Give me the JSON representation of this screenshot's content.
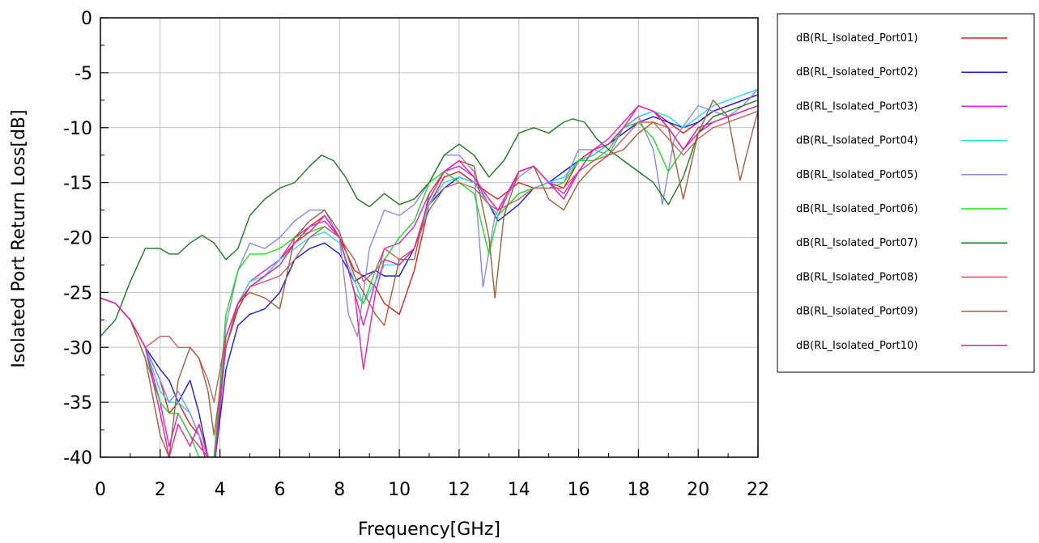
{
  "chart_data": {
    "type": "line",
    "xlabel": "Frequency[GHz]",
    "ylabel": "Isolated Port Return Loss[dB]",
    "xlim": [
      0,
      22
    ],
    "ylim": [
      -40,
      0
    ],
    "xticks": [
      0,
      2,
      4,
      6,
      8,
      10,
      12,
      14,
      16,
      18,
      20,
      22
    ],
    "yticks": [
      0,
      -5,
      -10,
      -15,
      -20,
      -25,
      -30,
      -35,
      -40
    ],
    "grid": true,
    "legend_position": "right",
    "series": [
      {
        "name": "dB(RL_Isolated_Port01)",
        "color": "#e02020",
        "x": [
          0,
          0.5,
          1,
          1.5,
          2,
          2.3,
          2.6,
          3,
          3.3,
          3.6,
          3.8,
          4.2,
          4.6,
          5,
          5.5,
          6,
          6.5,
          7,
          7.5,
          8,
          8.5,
          8.8,
          9.2,
          9.5,
          10,
          10.5,
          11,
          11.5,
          12,
          12.5,
          13,
          13.3,
          14,
          14.5,
          15,
          15.5,
          16,
          16.5,
          17,
          17.5,
          18,
          18.5,
          19,
          19.5,
          20,
          20.5,
          21,
          21.5,
          22
        ],
        "y": [
          -25.5,
          -26,
          -27.5,
          -30,
          -33,
          -36,
          -35,
          -37,
          -38,
          -41,
          -41,
          -30,
          -26.5,
          -24.5,
          -23.5,
          -22,
          -20.5,
          -19,
          -18,
          -20,
          -23,
          -23.5,
          -24.5,
          -26,
          -27,
          -23,
          -17,
          -14.5,
          -14,
          -15,
          -16,
          -16.5,
          -15,
          -15.5,
          -15,
          -15.5,
          -13,
          -12,
          -11.5,
          -10,
          -9,
          -8.5,
          -9.5,
          -10.5,
          -9.5,
          -8.5,
          -8,
          -7.5,
          -7
        ]
      },
      {
        "name": "dB(RL_Isolated_Port02)",
        "color": "#1a1ae0",
        "x": [
          0,
          0.5,
          1,
          1.5,
          2,
          2.3,
          2.6,
          3,
          3.3,
          3.6,
          3.8,
          4.2,
          4.6,
          5,
          5.5,
          6,
          6.5,
          7,
          7.5,
          8,
          8.5,
          8.8,
          9.2,
          9.5,
          10,
          10.5,
          11,
          11.5,
          12,
          12.5,
          13,
          13.3,
          14,
          14.5,
          15,
          15.5,
          16,
          16.5,
          17,
          17.5,
          18,
          18.5,
          19,
          19.5,
          20,
          20.5,
          21,
          21.5,
          22
        ],
        "y": [
          -25.5,
          -26,
          -27.5,
          -30,
          -32,
          -33,
          -35,
          -33,
          -36,
          -40,
          -41,
          -32,
          -28,
          -27,
          -26.5,
          -25,
          -22,
          -21,
          -20.5,
          -21.5,
          -24,
          -23.5,
          -23,
          -23.5,
          -23.5,
          -21,
          -17,
          -15.5,
          -14.5,
          -15,
          -17,
          -18.5,
          -17,
          -15.5,
          -15,
          -14,
          -13,
          -12.5,
          -11.5,
          -10.5,
          -9.5,
          -9,
          -9.5,
          -10,
          -9.5,
          -8.5,
          -8,
          -7.5,
          -7
        ]
      },
      {
        "name": "dB(RL_Isolated_Port03)",
        "color": "#e020e0",
        "x": [
          0,
          0.5,
          1,
          1.5,
          2,
          2.3,
          2.6,
          3,
          3.3,
          3.6,
          3.8,
          4.2,
          4.6,
          5,
          5.5,
          6,
          6.5,
          7,
          7.5,
          8,
          8.5,
          8.8,
          9.2,
          9.5,
          10,
          10.5,
          11,
          11.5,
          12,
          12.5,
          13,
          13.3,
          14,
          14.5,
          15,
          15.5,
          16,
          16.5,
          17,
          17.5,
          18,
          18.5,
          19,
          19.5,
          20,
          20.5,
          21,
          21.5,
          22
        ],
        "y": [
          -25.5,
          -26,
          -27.5,
          -30,
          -35,
          -39,
          -36,
          -38,
          -39,
          -40,
          -41,
          -30,
          -26,
          -24,
          -23,
          -22,
          -20,
          -19,
          -18.5,
          -20,
          -25,
          -28,
          -24,
          -21,
          -20.5,
          -19,
          -16,
          -14,
          -13.5,
          -14.5,
          -17,
          -18,
          -14,
          -13.5,
          -15,
          -16,
          -14,
          -12,
          -11,
          -9.5,
          -8,
          -8.5,
          -10,
          -12,
          -10.5,
          -9.5,
          -9,
          -8.5,
          -8
        ]
      },
      {
        "name": "dB(RL_Isolated_Port04)",
        "color": "#22dde8",
        "x": [
          0,
          0.5,
          1,
          1.5,
          2,
          2.3,
          2.6,
          3,
          3.3,
          3.6,
          3.8,
          4.2,
          4.6,
          5,
          5.5,
          6,
          6.5,
          7,
          7.5,
          8,
          8.5,
          8.8,
          9.2,
          9.5,
          10,
          10.5,
          11,
          11.5,
          12,
          12.5,
          13,
          13.3,
          14,
          14.5,
          15,
          15.5,
          16,
          16.5,
          17,
          17.5,
          18,
          18.5,
          19,
          19.5,
          20,
          20.5,
          21,
          21.5,
          22
        ],
        "y": [
          -25.5,
          -26,
          -27.5,
          -30,
          -34,
          -35,
          -35,
          -36,
          -38,
          -40,
          -40,
          -30,
          -26,
          -24,
          -23.5,
          -22,
          -21,
          -20,
          -19.5,
          -20.5,
          -24,
          -26,
          -24,
          -22.5,
          -22.5,
          -21,
          -17,
          -15,
          -14.5,
          -15,
          -17,
          -18,
          -16,
          -15.5,
          -15,
          -14.5,
          -13,
          -12.5,
          -11.5,
          -10,
          -9,
          -8.5,
          -9,
          -10,
          -9,
          -8,
          -7.5,
          -7,
          -6.5
        ]
      },
      {
        "name": "dB(RL_Isolated_Port05)",
        "color": "#8a8ae8",
        "x": [
          0,
          0.5,
          1,
          1.5,
          2,
          2.3,
          2.6,
          3,
          3.3,
          3.6,
          3.8,
          4.2,
          4.6,
          5,
          5.5,
          6,
          6.5,
          7,
          7.5,
          8,
          8.3,
          8.6,
          9,
          9.5,
          10,
          10.5,
          11,
          11.5,
          12,
          12.5,
          12.8,
          13.2,
          14,
          14.5,
          15,
          15.5,
          16,
          16.5,
          17,
          17.5,
          18,
          18.5,
          18.8,
          19.2,
          20,
          20.5,
          21,
          21.5,
          22
        ],
        "y": [
          -25.5,
          -26,
          -27.5,
          -30,
          -33,
          -35,
          -34,
          -36,
          -38,
          -40,
          -40,
          -28,
          -23,
          -20.5,
          -21,
          -20,
          -18.5,
          -17.5,
          -17.5,
          -20,
          -27,
          -29,
          -21,
          -17.5,
          -18,
          -17,
          -15,
          -12.5,
          -12.5,
          -14,
          -24.5,
          -18,
          -14.5,
          -13.5,
          -15,
          -15,
          -12,
          -12,
          -12.5,
          -10,
          -9,
          -12,
          -17,
          -11,
          -8,
          -8.5,
          -9,
          -8,
          -6.5
        ]
      },
      {
        "name": "dB(RL_Isolated_Port06)",
        "color": "#22dd22",
        "x": [
          0,
          0.5,
          1,
          1.5,
          2,
          2.3,
          2.6,
          3,
          3.3,
          3.6,
          3.8,
          4.2,
          4.6,
          5,
          5.5,
          6,
          6.5,
          7,
          7.5,
          8,
          8.5,
          8.8,
          9.2,
          9.5,
          10,
          10.5,
          11,
          11.5,
          12,
          12.5,
          13,
          13.3,
          14,
          14.5,
          15,
          15.5,
          16,
          16.5,
          17,
          17.5,
          18,
          18.5,
          19,
          19.5,
          20,
          20.5,
          21,
          21.5,
          22
        ],
        "y": [
          -25.5,
          -26,
          -27.5,
          -31,
          -35,
          -36,
          -36,
          -38,
          -40,
          -40,
          -40,
          -27,
          -23,
          -21.5,
          -21.5,
          -21,
          -20,
          -19.5,
          -19,
          -20,
          -25,
          -26,
          -23,
          -22,
          -20,
          -18.5,
          -15,
          -14,
          -15,
          -16,
          -21.5,
          -18,
          -16,
          -15.5,
          -15.5,
          -15,
          -13,
          -13,
          -12,
          -10,
          -9.5,
          -11,
          -14,
          -12,
          -10,
          -9.5,
          -9,
          -8.5,
          -8
        ]
      },
      {
        "name": "dB(RL_Isolated_Port07)",
        "color": "#1f7a1f",
        "x": [
          0,
          0.5,
          1,
          1.5,
          2,
          2.3,
          2.6,
          3,
          3.4,
          3.8,
          4.2,
          4.6,
          5,
          5.5,
          6,
          6.5,
          7,
          7.4,
          7.8,
          8.2,
          8.6,
          9,
          9.5,
          10,
          10.5,
          11,
          11.5,
          12,
          12.5,
          13,
          13.5,
          14,
          14.5,
          15,
          15.5,
          15.8,
          16.2,
          16.6,
          17,
          17.5,
          18,
          18.5,
          19,
          19.5,
          20,
          20.5,
          21,
          21.5,
          22
        ],
        "y": [
          -29,
          -27.5,
          -24,
          -21,
          -21,
          -21.5,
          -21.5,
          -20.5,
          -19.8,
          -20.5,
          -22,
          -21,
          -18,
          -16.5,
          -15.5,
          -15,
          -13.5,
          -12.5,
          -13,
          -14.5,
          -16.5,
          -17.2,
          -16,
          -17,
          -16.5,
          -15,
          -12.5,
          -11.5,
          -12.5,
          -14.5,
          -13,
          -10.5,
          -10,
          -10.5,
          -9.5,
          -9.2,
          -9.5,
          -11,
          -12,
          -13,
          -14,
          -15,
          -17,
          -14.5,
          -10.5,
          -9,
          -8.5,
          -8,
          -7.5
        ]
      },
      {
        "name": "dB(RL_Isolated_Port08)",
        "color": "#c86060",
        "x": [
          0,
          0.5,
          1,
          1.5,
          2,
          2.3,
          2.6,
          3,
          3.3,
          3.6,
          3.8,
          4.2,
          4.6,
          5,
          5.5,
          6,
          6.5,
          7,
          7.5,
          8,
          8.5,
          8.8,
          9.2,
          9.5,
          10,
          10.5,
          11,
          11.5,
          12,
          12.5,
          13,
          13.3,
          14,
          14.5,
          15,
          15.5,
          16,
          16.5,
          17,
          17.5,
          18,
          18.5,
          19,
          19.5,
          20,
          20.5,
          21,
          21.5,
          22
        ],
        "y": [
          -25.5,
          -26,
          -27.5,
          -30,
          -29,
          -29,
          -30,
          -30,
          -31,
          -33,
          -35,
          -29,
          -26,
          -24.5,
          -24,
          -23.5,
          -22,
          -20,
          -19,
          -20,
          -22,
          -24,
          -23,
          -21,
          -22,
          -21,
          -17.5,
          -15.5,
          -15,
          -15.5,
          -17,
          -17.5,
          -16.5,
          -15.5,
          -15.5,
          -15.5,
          -14,
          -13,
          -12.5,
          -11,
          -9.5,
          -9.5,
          -11,
          -12.5,
          -11,
          -10,
          -9.5,
          -9,
          -8.5
        ]
      },
      {
        "name": "dB(RL_Isolated_Port09)",
        "color": "#a0603a",
        "x": [
          0,
          0.5,
          1,
          1.5,
          2,
          2.3,
          2.6,
          3,
          3.3,
          3.6,
          3.8,
          4.2,
          4.6,
          5,
          5.5,
          6,
          6.5,
          7,
          7.5,
          8,
          8.5,
          8.8,
          9.2,
          9.5,
          10,
          10.5,
          11,
          11.5,
          12,
          12.5,
          13,
          13.2,
          13.5,
          14,
          14.5,
          15,
          15.5,
          16,
          16.5,
          17,
          17.5,
          18,
          18.5,
          19,
          19.5,
          20,
          20.5,
          21,
          21.4,
          21.8,
          22
        ],
        "y": [
          -25.5,
          -26,
          -27.5,
          -31,
          -38,
          -40,
          -33,
          -30,
          -31,
          -34,
          -38,
          -30,
          -26,
          -25,
          -25.5,
          -26.5,
          -20,
          -18.5,
          -17.5,
          -19.5,
          -23.5,
          -25,
          -27,
          -28,
          -22,
          -22,
          -16,
          -14,
          -13,
          -13.5,
          -20,
          -25.5,
          -18,
          -14,
          -13.5,
          -16.5,
          -17.5,
          -15,
          -13.5,
          -12.5,
          -12,
          -10.5,
          -9.5,
          -10,
          -16.5,
          -10.5,
          -7.5,
          -9,
          -14.8,
          -10.5,
          -8.5
        ]
      },
      {
        "name": "dB(RL_Isolated_Port10)",
        "color": "#ee1ea0",
        "x": [
          0,
          0.5,
          1,
          1.5,
          2,
          2.3,
          2.6,
          3,
          3.3,
          3.6,
          3.8,
          4.2,
          4.6,
          5,
          5.5,
          6,
          6.5,
          7,
          7.5,
          8,
          8.5,
          8.8,
          9.2,
          9.5,
          10,
          10.5,
          11,
          11.5,
          12,
          12.5,
          13,
          13.3,
          14,
          14.5,
          15,
          15.5,
          16,
          16.5,
          17,
          17.5,
          18,
          18.5,
          19,
          19.5,
          20,
          20.5,
          21,
          21.5,
          22
        ],
        "y": [
          -25.5,
          -26,
          -27.5,
          -30,
          -36,
          -40,
          -37,
          -39,
          -37,
          -40,
          -41,
          -29,
          -26,
          -24.5,
          -23.5,
          -22.5,
          -20.5,
          -19.5,
          -18,
          -20,
          -25,
          -32,
          -25,
          -22,
          -22.5,
          -21,
          -16.5,
          -14,
          -13,
          -14.5,
          -16.5,
          -17.5,
          -14,
          -13.5,
          -15,
          -16.5,
          -14,
          -12,
          -11.5,
          -10,
          -8,
          -8.5,
          -10,
          -12,
          -10,
          -9.5,
          -9,
          -8.5,
          -8
        ]
      }
    ]
  }
}
